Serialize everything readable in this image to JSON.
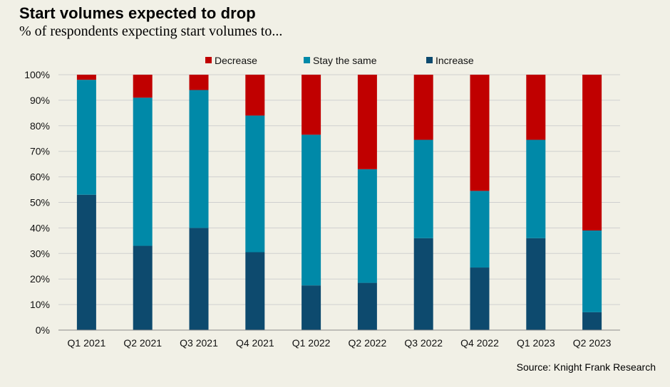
{
  "header": {
    "title": "Start volumes expected to drop",
    "subtitle": "% of respondents expecting start volumes to..."
  },
  "footer": {
    "source": "Source: Knight Frank Research"
  },
  "chart_data": {
    "type": "bar",
    "stacked": true,
    "percent_stacked": true,
    "title": "Start volumes expected to drop",
    "subtitle": "% of respondents expecting start volumes to...",
    "categories": [
      "Q1 2021",
      "Q2 2021",
      "Q3 2021",
      "Q4 2021",
      "Q1 2022",
      "Q2 2022",
      "Q3 2022",
      "Q4 2022",
      "Q1 2023",
      "Q2 2023"
    ],
    "series": [
      {
        "name": "Increase",
        "color": "#0d4a6e",
        "values": [
          53,
          33,
          40,
          30.5,
          17.5,
          18.5,
          36,
          24.5,
          36,
          7
        ]
      },
      {
        "name": "Stay the same",
        "color": "#0089a8",
        "values": [
          45,
          58,
          54,
          53.5,
          59,
          44.5,
          38.5,
          30,
          38.5,
          32
        ]
      },
      {
        "name": "Decrease",
        "color": "#c00000",
        "values": [
          2,
          9,
          6,
          16,
          23.5,
          37,
          25.5,
          45.5,
          25.5,
          61
        ]
      }
    ],
    "legend_order": [
      "Decrease",
      "Stay the same",
      "Increase"
    ],
    "legend_position": "top",
    "ylim": [
      0,
      100
    ],
    "yticks": [
      "0%",
      "10%",
      "20%",
      "30%",
      "40%",
      "50%",
      "60%",
      "70%",
      "80%",
      "90%",
      "100%"
    ],
    "grid": true,
    "xlabel": "",
    "ylabel": ""
  }
}
